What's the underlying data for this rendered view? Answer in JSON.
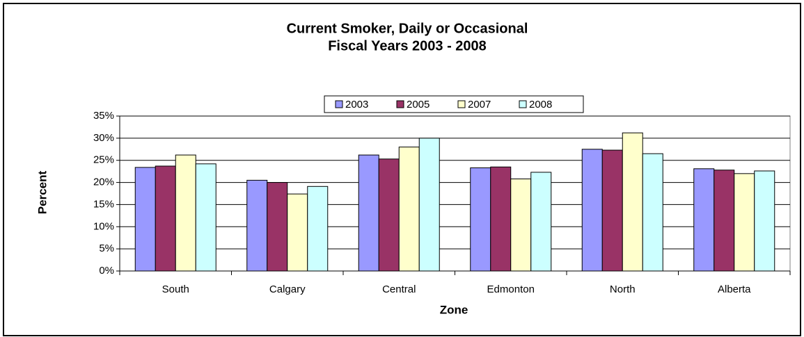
{
  "chart_data": {
    "type": "bar",
    "title": "Current Smoker, Daily or Occasional",
    "subtitle": "Fiscal Years 2003 - 2008",
    "x_label": "Zone",
    "y_label": "Percent",
    "categories": [
      "South",
      "Calgary",
      "Central",
      "Edmonton",
      "North",
      "Alberta"
    ],
    "series": [
      {
        "name": "2003",
        "color": "#9999ff",
        "values": [
          23.4,
          20.5,
          26.2,
          23.3,
          27.5,
          23.1
        ]
      },
      {
        "name": "2005",
        "color": "#993366",
        "values": [
          23.7,
          20.0,
          25.3,
          23.5,
          27.3,
          22.8
        ]
      },
      {
        "name": "2007",
        "color": "#ffffcc",
        "values": [
          26.2,
          17.4,
          28.0,
          20.8,
          31.2,
          22.0
        ]
      },
      {
        "name": "2008",
        "color": "#ccffff",
        "values": [
          24.2,
          19.1,
          30.0,
          22.3,
          26.5,
          22.6
        ]
      }
    ],
    "ylim": [
      0,
      35
    ],
    "yticks": [
      {
        "value": 0,
        "label": "0%"
      },
      {
        "value": 5,
        "label": "5%"
      },
      {
        "value": 10,
        "label": "10%"
      },
      {
        "value": 15,
        "label": "15%"
      },
      {
        "value": 20,
        "label": "20%"
      },
      {
        "value": 25,
        "label": "25%"
      },
      {
        "value": 30,
        "label": "30%"
      },
      {
        "value": 35,
        "label": "35%"
      }
    ],
    "grid": true,
    "legend": "top"
  }
}
